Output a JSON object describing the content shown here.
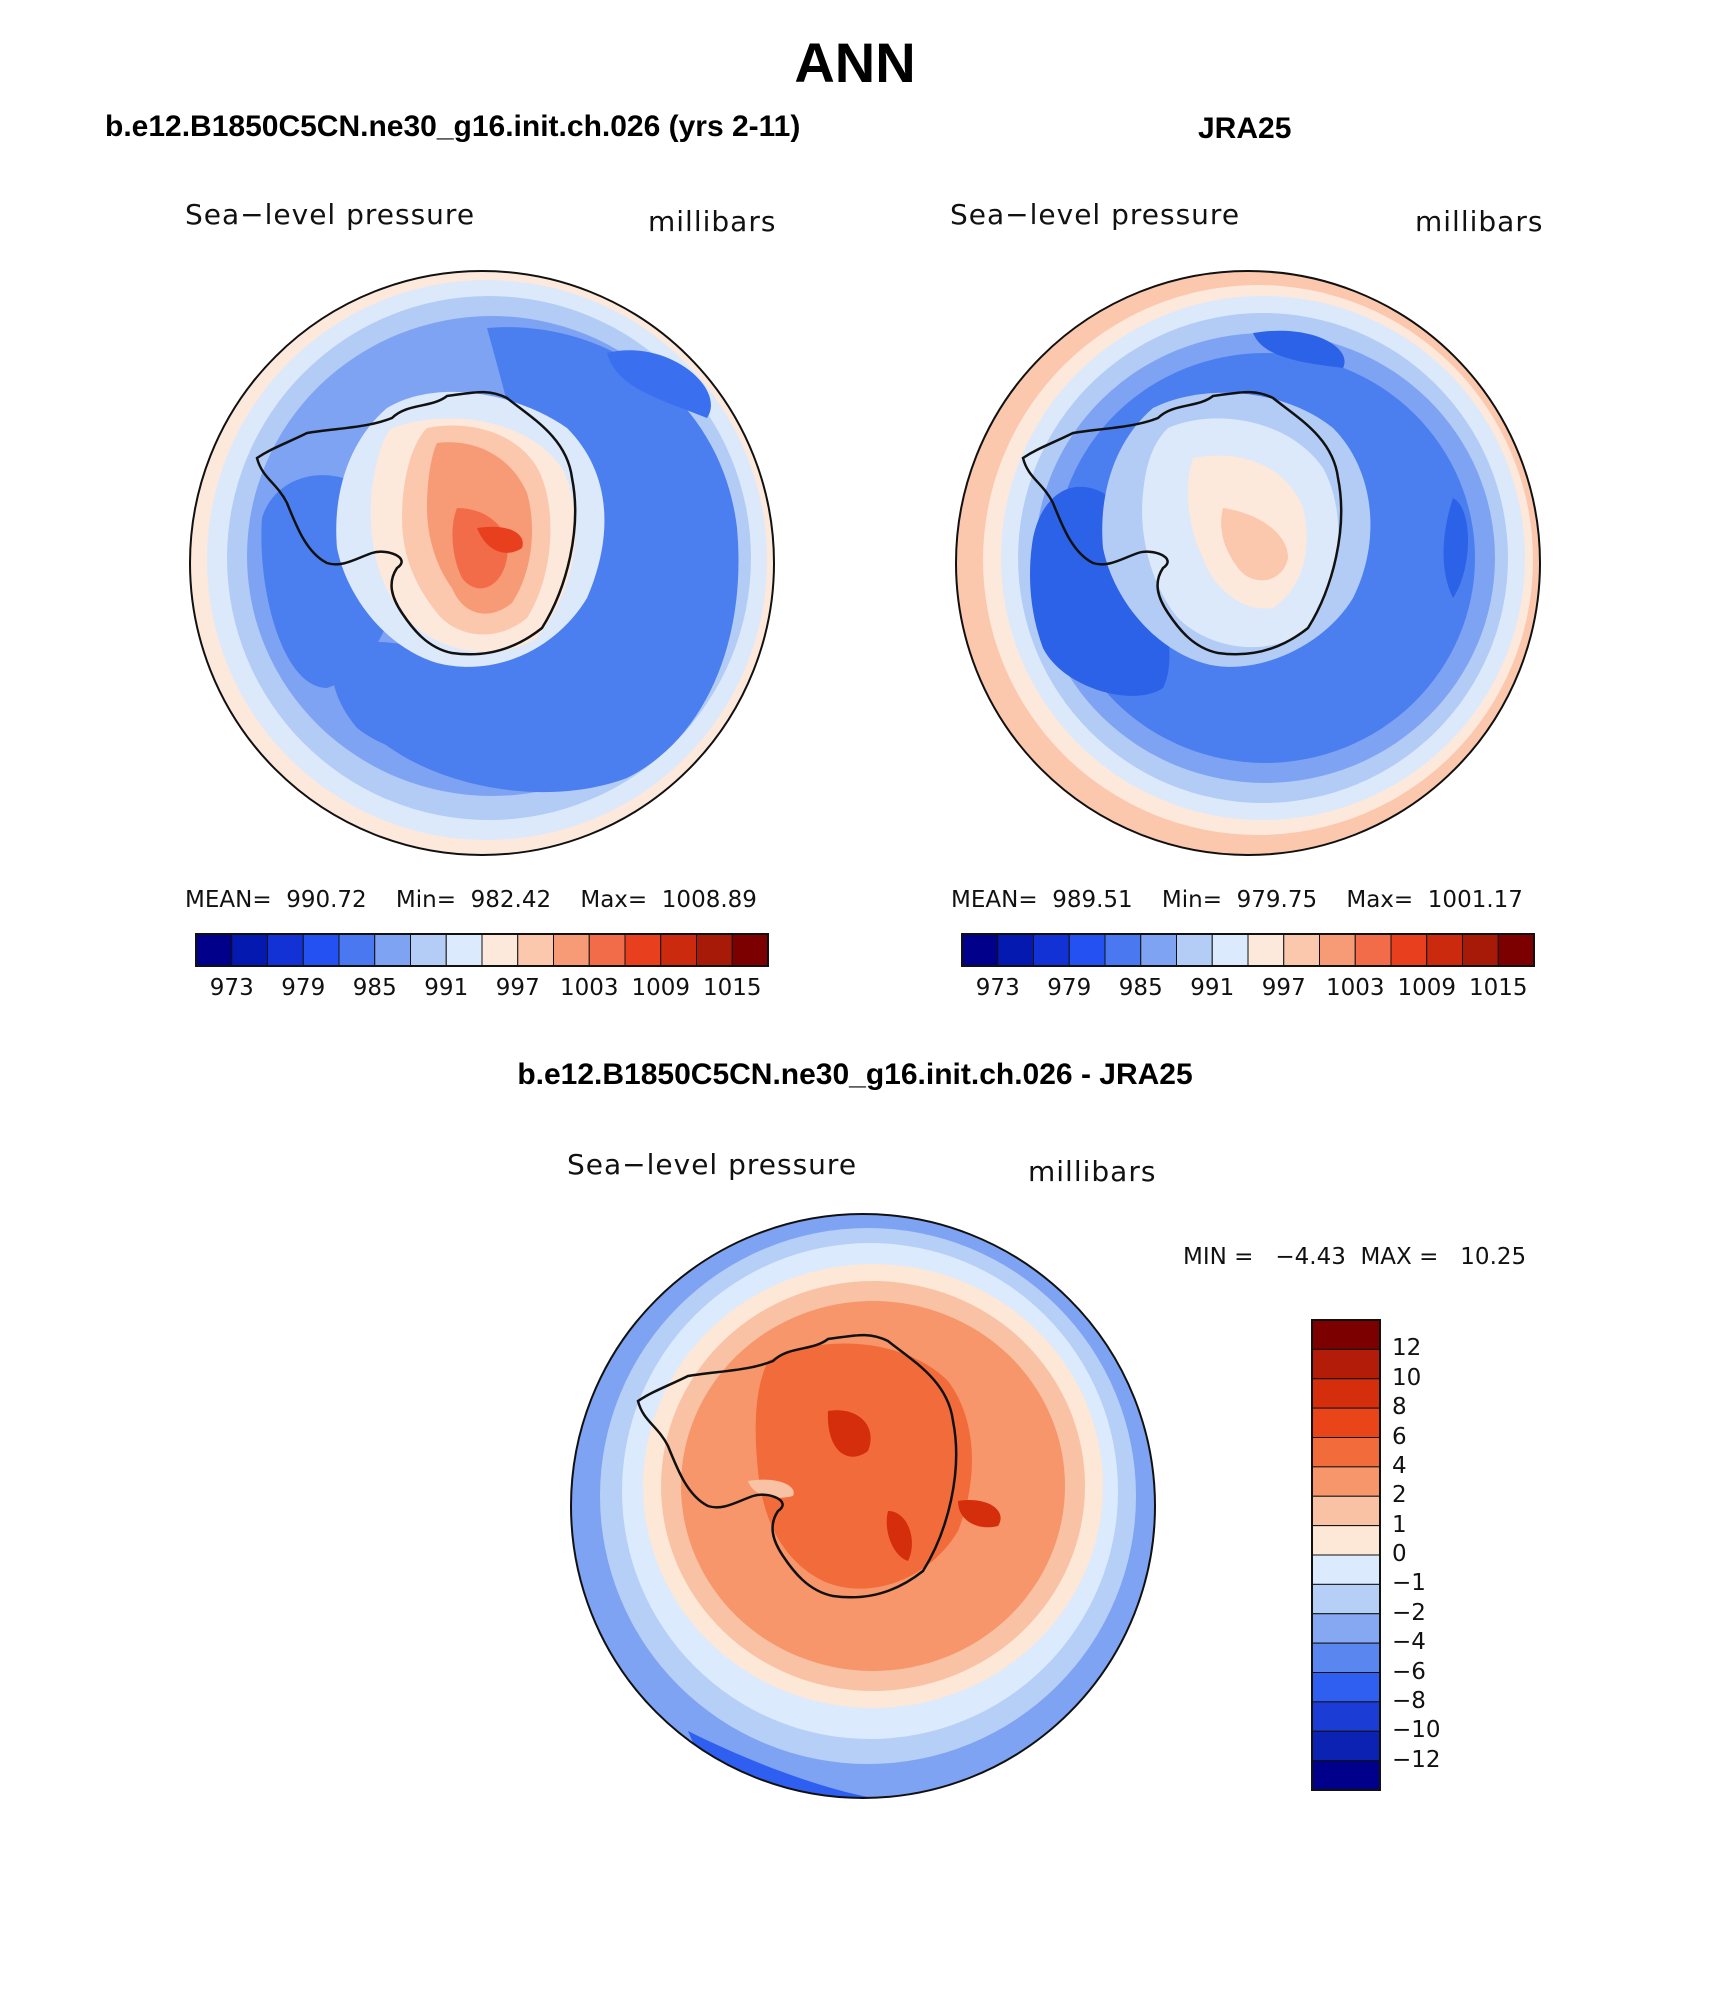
{
  "figure": {
    "title": "ANN"
  },
  "panels": [
    {
      "title": "b.e12.B1850C5CN.ne30_g16.init.ch.026 (yrs 2-11)",
      "left_label": "Sea−level pressure",
      "right_label": "millibars",
      "stats": "MEAN=  990.72    Min=  982.42    Max=  1008.89"
    },
    {
      "title": "JRA25",
      "left_label": "Sea−level pressure",
      "right_label": "millibars",
      "stats": "MEAN=  989.51    Min=  979.75    Max=  1001.17"
    },
    {
      "title": "b.e12.B1850C5CN.ne30_g16.init.ch.026 - JRA25",
      "left_label": "Sea−level pressure",
      "right_label": "millibars",
      "stats": "MIN =   −4.43  MAX =   10.25"
    }
  ],
  "colorbar_abs": {
    "colors": [
      "#00008a",
      "#0419b0",
      "#1232d6",
      "#2452f2",
      "#4a78f0",
      "#7fa3f3",
      "#b3cdf7",
      "#dbeafc",
      "#fde8dc",
      "#fbc7ad",
      "#f79a76",
      "#f36c4a",
      "#e8401e",
      "#cc2a0e",
      "#a81a08",
      "#7d0000"
    ],
    "tick_labels": [
      "973",
      "979",
      "985",
      "991",
      "997",
      "1003",
      "1009",
      "1015"
    ]
  },
  "colorbar_diff": {
    "colors": [
      "#7d0000",
      "#b31c08",
      "#d52e0c",
      "#ea4519",
      "#f26b3a",
      "#f6966a",
      "#f9c2a4",
      "#fde7d7",
      "#dbeafc",
      "#b6cff7",
      "#86a8f2",
      "#5a86ef",
      "#2f5ff0",
      "#1c3cd6",
      "#0c22b3",
      "#00008a"
    ],
    "tick_labels": [
      "12",
      "10",
      "8",
      "6",
      "4",
      "2",
      "1",
      "0",
      "−1",
      "−2",
      "−4",
      "−6",
      "−8",
      "−10",
      "−12"
    ]
  },
  "map_palette": {
    "deep_blue": "#2b62e8",
    "blue": "#4b7ff0",
    "mid_blue": "#7ea3f3",
    "light_blue": "#b3ccf6",
    "pale_blue": "#d9e8fb",
    "cream": "#fde8dc",
    "peach": "#fbc7ad",
    "salmon": "#f79a76",
    "orange": "#f36c4a",
    "red_orange": "#e8401e",
    "ocean_boundary": "#111111"
  }
}
